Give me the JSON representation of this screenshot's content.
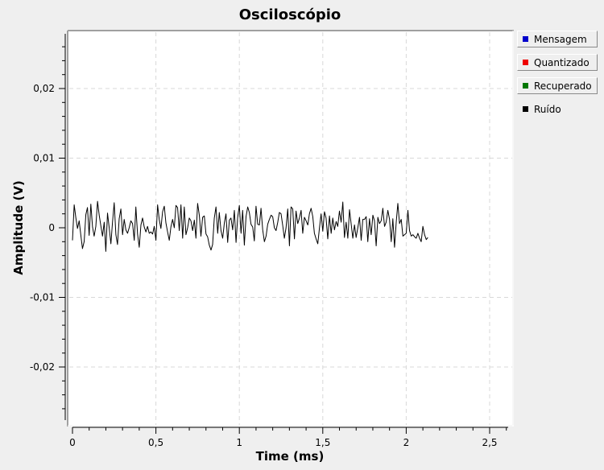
{
  "chart_data": {
    "type": "line",
    "title": "Osciloscópio",
    "xlabel": "Time (ms)",
    "ylabel": "Amplitude (V)",
    "xlim": [
      0,
      2.6
    ],
    "ylim": [
      -0.028,
      0.028
    ],
    "x_ticks": [
      0,
      0.5,
      1,
      1.5,
      2,
      2.5
    ],
    "x_tick_labels": [
      "0",
      "0,5",
      "1",
      "1,5",
      "2",
      "2,5"
    ],
    "y_ticks": [
      0.02,
      0.01,
      0,
      -0.01,
      -0.02
    ],
    "y_tick_labels": [
      "0,02",
      "0,01",
      "0",
      "-0,01",
      "-0,02"
    ],
    "grid": true,
    "legend_position": "right",
    "series": [
      {
        "name": "Mensagem",
        "color": "#0000cc",
        "values": []
      },
      {
        "name": "Quantizado",
        "color": "#ee0000",
        "values": []
      },
      {
        "name": "Recuperado",
        "color": "#007700",
        "values": []
      },
      {
        "name": "Ruído",
        "color": "#000000",
        "x_step": 0.01,
        "values": [
          -0.0018,
          0.0033,
          0.0015,
          -0.0001,
          0.001,
          -0.0011,
          -0.003,
          -0.002,
          0.0019,
          0.0029,
          -0.0011,
          0.0034,
          0.0001,
          -0.0012,
          0.0002,
          0.0038,
          0.0018,
          0.0003,
          -0.0012,
          0.0008,
          -0.0034,
          0.0021,
          0.0,
          -0.0023,
          0.0008,
          0.0036,
          -0.001,
          -0.0024,
          0.0013,
          0.0027,
          -0.001,
          0.0012,
          -0.0003,
          -0.0008,
          0.0,
          0.001,
          0.0006,
          -0.0018,
          0.003,
          -0.0009,
          -0.0028,
          0.0004,
          0.0014,
          0.0001,
          -0.0006,
          0.0002,
          -0.0008,
          -0.0006,
          -0.0009,
          0.0002,
          -0.0018,
          0.0033,
          0.0012,
          -0.0001,
          0.0023,
          0.0031,
          0.0007,
          -0.0006,
          -0.0018,
          0.0001,
          0.0012,
          0.0,
          0.0032,
          0.0029,
          -0.0004,
          0.0033,
          -0.0015,
          0.003,
          -0.001,
          0.0,
          0.0014,
          0.001,
          -0.0004,
          0.0011,
          -0.0015,
          0.0035,
          0.0018,
          -0.0012,
          0.0015,
          0.0017,
          -0.0009,
          -0.0013,
          -0.0025,
          -0.0032,
          -0.0024,
          0.0014,
          0.003,
          -0.0008,
          0.0022,
          -0.0004,
          -0.0015,
          0.0007,
          0.002,
          -0.0021,
          0.0011,
          0.0014,
          -0.0003,
          0.0025,
          -0.0021,
          0.0015,
          0.0032,
          -0.0008,
          0.0025,
          -0.0025,
          0.0016,
          0.003,
          0.0022,
          0.0005,
          0.0001,
          -0.0019,
          0.0031,
          0.0005,
          0.0004,
          0.0028,
          -0.0003,
          -0.002,
          -0.0012,
          0.0005,
          0.0012,
          0.0018,
          0.0016,
          0.0,
          -0.0004,
          0.0008,
          0.0022,
          0.002,
          0.0003,
          -0.0015,
          0.0,
          0.0027,
          -0.0026,
          0.003,
          0.0027,
          -0.0016,
          0.0024,
          0.0006,
          0.0014,
          0.0025,
          -0.0008,
          0.0015,
          0.001,
          0.0004,
          0.002,
          0.0028,
          0.0016,
          -0.0008,
          -0.0016,
          -0.0023,
          0.0,
          0.002,
          -0.0005,
          0.0023,
          0.0014,
          -0.0016,
          0.0017,
          -0.0008,
          0.0014,
          -0.0003,
          0.0009,
          0.0002,
          0.0024,
          0.0008,
          0.0037,
          -0.0014,
          0.0008,
          -0.0015,
          0.0026,
          0.0006,
          -0.0015,
          0.0004,
          -0.0014,
          0.0,
          0.0015,
          -0.0018,
          0.0012,
          0.0012,
          0.0016,
          -0.002,
          0.0013,
          -0.001,
          0.0018,
          0.001,
          -0.0026,
          0.0015,
          0.0006,
          0.001,
          0.0028,
          0.0002,
          0.0008,
          0.0025,
          0.0012,
          -0.002,
          0.0013,
          -0.0028,
          0.0008,
          0.0035,
          0.0006,
          0.0012,
          -0.0012,
          -0.001,
          -0.0008,
          0.0025,
          -0.0004,
          -0.0012,
          -0.001,
          -0.0013,
          -0.0015,
          -0.0008,
          -0.0015,
          -0.002,
          0.0002,
          -0.001,
          -0.0017,
          -0.0014
        ]
      }
    ]
  }
}
